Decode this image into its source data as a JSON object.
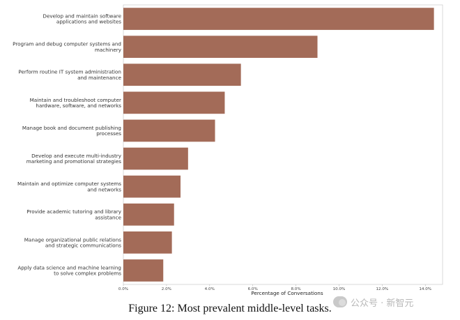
{
  "chart_data": {
    "type": "bar",
    "orientation": "horizontal",
    "categories": [
      [
        "Develop and maintain software",
        "applications and websites"
      ],
      [
        "Program and debug computer systems and",
        "machinery"
      ],
      [
        "Perform routine IT system administration",
        "and maintenance"
      ],
      [
        "Maintain and troubleshoot computer",
        "hardware, software, and networks"
      ],
      [
        "Manage book and document publishing",
        "processes"
      ],
      [
        "Develop and execute multi-industry",
        "marketing and promotional strategies"
      ],
      [
        "Maintain and optimize computer systems",
        "and networks"
      ],
      [
        "Provide academic tutoring and library",
        "assistance"
      ],
      [
        "Manage organizational public relations",
        "and strategic communications"
      ],
      [
        "Apply data science and machine learning",
        "to solve complex problems"
      ]
    ],
    "values": [
      14.4,
      9.0,
      5.45,
      4.7,
      4.25,
      3.0,
      2.65,
      2.35,
      2.25,
      1.85
    ],
    "xlabel": "Percentage of Conversations",
    "xlim": [
      0,
      14.8
    ],
    "xticks": [
      0,
      2,
      4,
      6,
      8,
      10,
      12,
      14
    ],
    "xtick_labels": [
      "0.0%",
      "2.0%",
      "4.0%",
      "6.0%",
      "8.0%",
      "10.0%",
      "12.0%",
      "14.0%"
    ],
    "bar_color": "#a36b58",
    "grid": false
  },
  "caption": "Figure 12: Most prevalent middle-level tasks.",
  "watermark": "公众号 · 新智元"
}
